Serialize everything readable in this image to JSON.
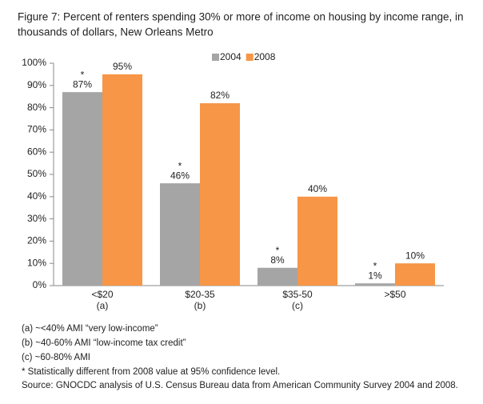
{
  "chart_data": {
    "type": "bar",
    "title": [
      "Figure 7: Percent of renters spending 30% or more of income on housing by income range, in",
      "thousands of dollars, New Orleans Metro"
    ],
    "categories": [
      "<$20",
      "$20-35",
      "$35-50",
      ">$50"
    ],
    "category_notes": [
      "(a)",
      "(b)",
      "(c)",
      null
    ],
    "series": [
      {
        "name": "2004",
        "color": "#a5a5a5",
        "values": [
          87,
          46,
          8,
          1
        ],
        "value_labels": [
          "87%",
          "46%",
          "8%",
          "1%"
        ],
        "markers": [
          "*",
          "*",
          "*",
          "*"
        ]
      },
      {
        "name": "2008",
        "color": "#f79646",
        "values": [
          95,
          82,
          40,
          10
        ],
        "value_labels": [
          "95%",
          "82%",
          "40%",
          "10%"
        ]
      }
    ],
    "ylim": [
      0,
      100
    ],
    "yticks": [
      {
        "value": 0,
        "label": "0%"
      },
      {
        "value": 10,
        "label": "10%"
      },
      {
        "value": 20,
        "label": "20%"
      },
      {
        "value": 30,
        "label": "30%"
      },
      {
        "value": 40,
        "label": "40%"
      },
      {
        "value": 50,
        "label": "50%"
      },
      {
        "value": 60,
        "label": "60%"
      },
      {
        "value": 70,
        "label": "70%"
      },
      {
        "value": 80,
        "label": "80%"
      },
      {
        "value": 90,
        "label": "90%"
      },
      {
        "value": 100,
        "label": "100%"
      }
    ],
    "legend": "top",
    "footnotes": [
      "(a)  ~<40% AMI “very low-income”",
      "(b)  ~40-60% AMI “low-income tax credit”",
      "(c)  ~60-80% AMI",
      "* Statistically different from 2008 value at 95% confidence level.",
      "Source: GNOCDC analysis of U.S. Census Bureau data from American Community Survey 2004 and 2008."
    ]
  }
}
